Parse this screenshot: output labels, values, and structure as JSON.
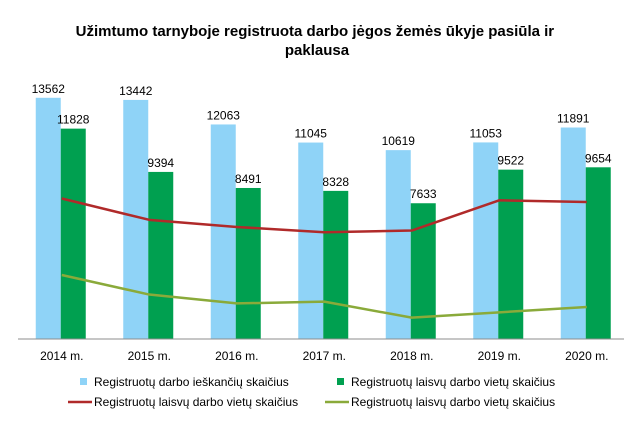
{
  "chart_data": {
    "type": "bar",
    "title": "Užimtumo tarnyboje registruota darbo jėgos žemės ūkyje pasiūla ir paklausa",
    "categories": [
      "2014 m.",
      "2015 m.",
      "2016 m.",
      "2017 m.",
      "2018 m.",
      "2019 m.",
      "2020 m."
    ],
    "ylim": [
      0,
      14000
    ],
    "grid": false,
    "legend_position": "bottom",
    "series": [
      {
        "name": "Registruotų darbo ieškančių skaičius",
        "type": "bar",
        "color": "#8fd3f7",
        "values": [
          13562,
          13442,
          12063,
          11045,
          10619,
          11053,
          11891
        ]
      },
      {
        "name": "Registruotų laisvų darbo vietų skaičius",
        "type": "bar",
        "color": "#00a050",
        "values": [
          11828,
          9394,
          8491,
          8328,
          7633,
          9522,
          9654
        ]
      },
      {
        "name": "Registruotų laisvų darbo vietų skaičius",
        "type": "line",
        "color": "#b02a2a",
        "values": [
          7900,
          6700,
          6300,
          6000,
          6100,
          7800,
          7700
        ]
      },
      {
        "name": "Registruotų laisvų darbo vietų skaičius",
        "type": "line",
        "color": "#8aaa3a",
        "values": [
          3600,
          2500,
          2000,
          2100,
          1200,
          1500,
          1800
        ]
      }
    ]
  }
}
